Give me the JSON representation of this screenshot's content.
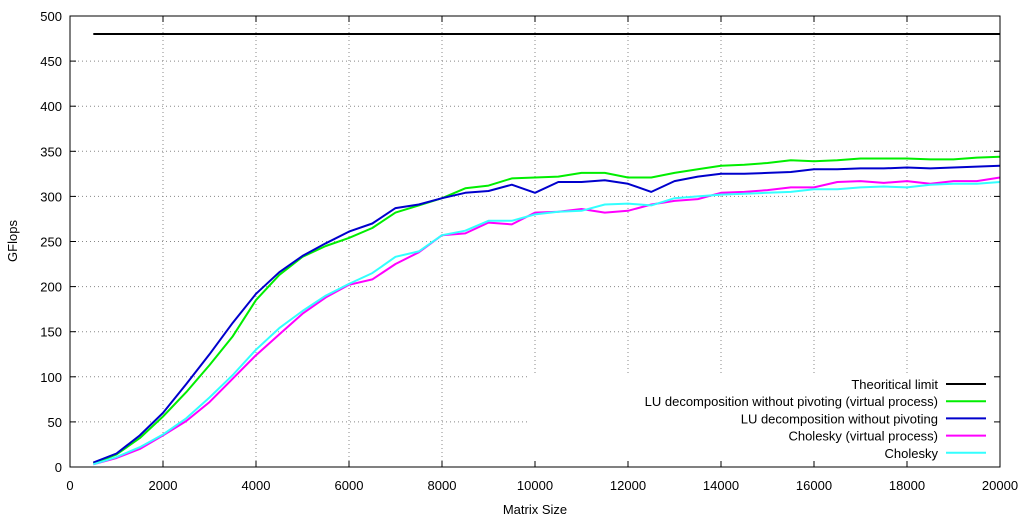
{
  "chart_data": {
    "type": "line",
    "xlabel": "Matrix Size",
    "ylabel": "GFlops",
    "xlim": [
      0,
      20000
    ],
    "ylim": [
      0,
      500
    ],
    "xticks": [
      0,
      2000,
      4000,
      6000,
      8000,
      10000,
      12000,
      14000,
      16000,
      18000,
      20000
    ],
    "yticks": [
      0,
      50,
      100,
      150,
      200,
      250,
      300,
      350,
      400,
      450,
      500
    ],
    "grid": true,
    "legend_position": "bottom-right",
    "series": [
      {
        "name": "Theoritical limit",
        "color": "#000000",
        "x": [
          500,
          20000
        ],
        "y": [
          480,
          480
        ]
      },
      {
        "name": "LU decomposition without pivoting (virtual process)",
        "color": "#00ee00",
        "x": [
          500,
          1000,
          1500,
          2000,
          2500,
          3000,
          3500,
          4000,
          4500,
          5000,
          5500,
          6000,
          6500,
          7000,
          7500,
          8000,
          8500,
          9000,
          9500,
          10000,
          10500,
          11000,
          11500,
          12000,
          12500,
          13000,
          13500,
          14000,
          14500,
          15000,
          15500,
          16000,
          16500,
          17000,
          17500,
          18000,
          18500,
          19000,
          19500,
          20000
        ],
        "y": [
          4,
          14,
          32,
          56,
          83,
          113,
          145,
          185,
          213,
          233,
          245,
          254,
          265,
          282,
          290,
          298,
          309,
          312,
          320,
          321,
          322,
          326,
          326,
          321,
          321,
          326,
          330,
          334,
          335,
          337,
          340,
          339,
          340,
          342,
          342,
          342,
          341,
          341,
          343,
          344
        ]
      },
      {
        "name": "LU decomposition without pivoting",
        "color": "#0000cc",
        "x": [
          500,
          1000,
          1500,
          2000,
          2500,
          3000,
          3500,
          4000,
          4500,
          5000,
          5500,
          6000,
          6500,
          7000,
          7500,
          8000,
          8500,
          9000,
          9500,
          10000,
          10500,
          11000,
          11500,
          12000,
          12500,
          13000,
          13500,
          14000,
          14500,
          15000,
          15500,
          16000,
          16500,
          17000,
          17500,
          18000,
          18500,
          19000,
          19500,
          20000
        ],
        "y": [
          5,
          15,
          35,
          60,
          92,
          125,
          160,
          192,
          216,
          234,
          248,
          261,
          270,
          287,
          291,
          298,
          304,
          306,
          313,
          304,
          316,
          316,
          318,
          314,
          305,
          317,
          322,
          325,
          325,
          326,
          327,
          330,
          330,
          331,
          331,
          332,
          331,
          332,
          333,
          334
        ]
      },
      {
        "name": "Cholesky (virtual process)",
        "color": "#ff00ff",
        "x": [
          500,
          1000,
          1500,
          2000,
          2500,
          3000,
          3500,
          4000,
          4500,
          5000,
          5500,
          6000,
          6500,
          7000,
          7500,
          8000,
          8500,
          9000,
          9500,
          10000,
          10500,
          11000,
          11500,
          12000,
          12500,
          13000,
          13500,
          14000,
          14500,
          15000,
          15500,
          16000,
          16500,
          17000,
          17500,
          18000,
          18500,
          19000,
          19500,
          20000
        ],
        "y": [
          3,
          10,
          20,
          35,
          51,
          72,
          98,
          124,
          147,
          170,
          188,
          202,
          208,
          225,
          238,
          257,
          259,
          271,
          269,
          282,
          283,
          286,
          282,
          284,
          291,
          295,
          297,
          304,
          305,
          307,
          310,
          310,
          316,
          317,
          315,
          317,
          314,
          317,
          317,
          321
        ]
      },
      {
        "name": "Cholesky",
        "color": "#33ffff",
        "x": [
          500,
          1000,
          1500,
          2000,
          2500,
          3000,
          3500,
          4000,
          4500,
          5000,
          5500,
          6000,
          6500,
          7000,
          7500,
          8000,
          8500,
          9000,
          9500,
          10000,
          10500,
          11000,
          11500,
          12000,
          12500,
          13000,
          13500,
          14000,
          14500,
          15000,
          15500,
          16000,
          16500,
          17000,
          17500,
          18000,
          18500,
          19000,
          19500,
          20000
        ],
        "y": [
          3,
          11,
          22,
          36,
          54,
          77,
          102,
          130,
          154,
          173,
          190,
          203,
          215,
          233,
          239,
          257,
          262,
          273,
          273,
          280,
          283,
          284,
          291,
          292,
          290,
          298,
          300,
          302,
          303,
          304,
          305,
          308,
          308,
          310,
          311,
          310,
          313,
          314,
          314,
          316
        ]
      }
    ]
  }
}
